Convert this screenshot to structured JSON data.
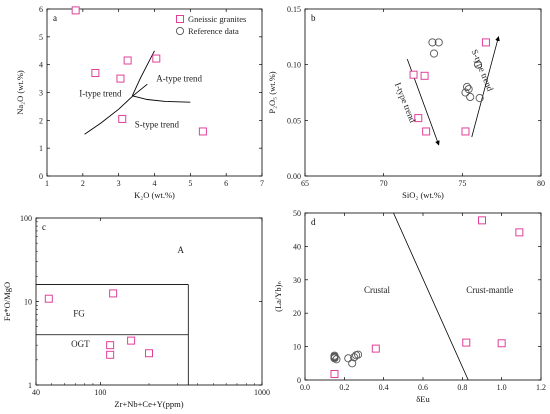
{
  "colors": {
    "square": "#e0409a",
    "circle": "#555555",
    "axis": "#000000"
  },
  "chart_data": [
    {
      "type": "scatter",
      "panel": "a",
      "xlabel": "K₂O (wt.%)",
      "ylabel": "Na₂O (wt.%)",
      "xlim": [
        1,
        7
      ],
      "ylim": [
        0,
        6
      ],
      "xticks": [
        1,
        2,
        3,
        4,
        5,
        6,
        7
      ],
      "yticks": [
        0,
        1,
        2,
        3,
        4,
        5,
        6
      ],
      "legend": [
        {
          "marker": "square",
          "label": "Gneissic granites"
        },
        {
          "marker": "circle",
          "label": "Reference data"
        }
      ],
      "series": [
        {
          "marker": "square",
          "name": "Gneissic granites",
          "points": [
            [
              1.8,
              5.95
            ],
            [
              2.35,
              3.7
            ],
            [
              3.05,
              3.5
            ],
            [
              3.25,
              4.15
            ],
            [
              4.05,
              4.22
            ],
            [
              3.1,
              2.05
            ],
            [
              5.35,
              1.6
            ]
          ]
        }
      ],
      "lines": [
        [
          [
            2.05,
            1.5
          ],
          [
            2.5,
            1.9
          ],
          [
            3.0,
            2.4
          ],
          [
            3.4,
            2.88
          ],
          [
            3.8,
            3.3
          ]
        ],
        [
          [
            3.38,
            2.88
          ],
          [
            3.6,
            3.5
          ],
          [
            3.8,
            4.0
          ],
          [
            4.0,
            4.5
          ]
        ],
        [
          [
            3.38,
            2.88
          ],
          [
            3.8,
            2.75
          ],
          [
            4.3,
            2.68
          ],
          [
            5.0,
            2.65
          ]
        ]
      ],
      "annotations": [
        {
          "text": "A-type trend",
          "x": 4.05,
          "y": 3.4
        },
        {
          "text": "I-type trend",
          "x": 1.9,
          "y": 2.85
        },
        {
          "text": "S-type trend",
          "x": 3.45,
          "y": 1.75
        }
      ]
    },
    {
      "type": "scatter",
      "panel": "b",
      "xlabel": "SiO₂ (wt.%)",
      "ylabel": "P₂O₅ (wt.%)",
      "xlim": [
        65,
        80
      ],
      "ylim": [
        0,
        0.15
      ],
      "xticks": [
        65,
        70,
        75,
        80
      ],
      "yticks": [
        0.0,
        0.05,
        0.1,
        0.15
      ],
      "series": [
        {
          "marker": "square",
          "name": "Gneissic granites",
          "points": [
            [
              71.9,
              0.091
            ],
            [
              72.6,
              0.09
            ],
            [
              72.2,
              0.052
            ],
            [
              72.7,
              0.04
            ],
            [
              75.2,
              0.04
            ],
            [
              76.5,
              0.12
            ]
          ]
        },
        {
          "marker": "circle",
          "name": "Reference data",
          "points": [
            [
              73.1,
              0.12
            ],
            [
              73.5,
              0.12
            ],
            [
              73.2,
              0.11
            ],
            [
              75.3,
              0.08
            ],
            [
              75.4,
              0.078
            ],
            [
              75.2,
              0.075
            ],
            [
              75.5,
              0.071
            ],
            [
              76.1,
              0.07
            ],
            [
              76.0,
              0.1
            ]
          ]
        }
      ],
      "arrows": [
        {
          "from": [
            71.5,
            0.105
          ],
          "to": [
            73.5,
            0.028
          ]
        },
        {
          "from": [
            75.6,
            0.035
          ],
          "to": [
            77.3,
            0.125
          ]
        }
      ],
      "annotations": [
        {
          "text": "I-type trend",
          "x": 71.2,
          "y": 0.065,
          "rotate": 68
        },
        {
          "text": "S-type trend",
          "x": 76.1,
          "y": 0.094,
          "rotate": 68
        }
      ]
    },
    {
      "type": "scatter",
      "panel": "c",
      "xlabel": "Zr+Nb+Ce+Y(ppm)",
      "ylabel": "Fe*O/MgO",
      "xscale": "log",
      "yscale": "log",
      "xlim": [
        40,
        1000
      ],
      "ylim": [
        1,
        100
      ],
      "xticks": [
        40,
        100,
        1000
      ],
      "yticks": [
        1,
        10,
        100
      ],
      "series": [
        {
          "marker": "square",
          "name": "Gneissic granites",
          "points": [
            [
              48,
              10.8
            ],
            [
              120,
              12.5
            ],
            [
              155,
              3.4
            ],
            [
              115,
              3.0
            ],
            [
              115,
              2.3
            ],
            [
              200,
              2.4
            ]
          ]
        }
      ],
      "boundaries": [
        {
          "x1": 40,
          "x2": 350,
          "y": 16
        },
        {
          "x1": 40,
          "x2": 350,
          "y": 4
        },
        {
          "x": 350,
          "y1": 1,
          "y2": 16
        }
      ],
      "annotations": [
        {
          "text": "A",
          "x": 300,
          "y": 38
        },
        {
          "text": "FG",
          "x": 68,
          "y": 6.6
        },
        {
          "text": "OGT",
          "x": 66,
          "y": 2.85
        }
      ]
    },
    {
      "type": "scatter",
      "panel": "d",
      "xlabel": "δEu",
      "ylabel": "(La/Yb)ₙ",
      "xlim": [
        0,
        1.2
      ],
      "ylim": [
        0,
        50
      ],
      "xticks": [
        0.0,
        0.2,
        0.4,
        0.6,
        0.8,
        1.0,
        1.2
      ],
      "yticks": [
        0,
        10,
        20,
        30,
        40,
        50
      ],
      "series": [
        {
          "marker": "square",
          "name": "Gneissic granites",
          "points": [
            [
              0.15,
              1.8
            ],
            [
              0.36,
              9.4
            ],
            [
              0.82,
              11.2
            ],
            [
              1.0,
              11.0
            ],
            [
              0.9,
              47.8
            ],
            [
              1.09,
              44.2
            ]
          ]
        },
        {
          "marker": "circle",
          "name": "Reference data",
          "points": [
            [
              0.15,
              7.3
            ],
            [
              0.15,
              7.0
            ],
            [
              0.15,
              6.8
            ],
            [
              0.15,
              6.5
            ],
            [
              0.16,
              6.2
            ],
            [
              0.22,
              6.5
            ],
            [
              0.25,
              6.8
            ],
            [
              0.26,
              7.4
            ],
            [
              0.27,
              7.6
            ],
            [
              0.24,
              5.0
            ]
          ]
        }
      ],
      "boundary": [
        [
          0.45,
          50
        ],
        [
          0.83,
          0
        ]
      ],
      "annotations": [
        {
          "text": "Crustal",
          "x": 0.3,
          "y": 26
        },
        {
          "text": "Crust-mantle",
          "x": 0.82,
          "y": 26
        }
      ]
    }
  ]
}
